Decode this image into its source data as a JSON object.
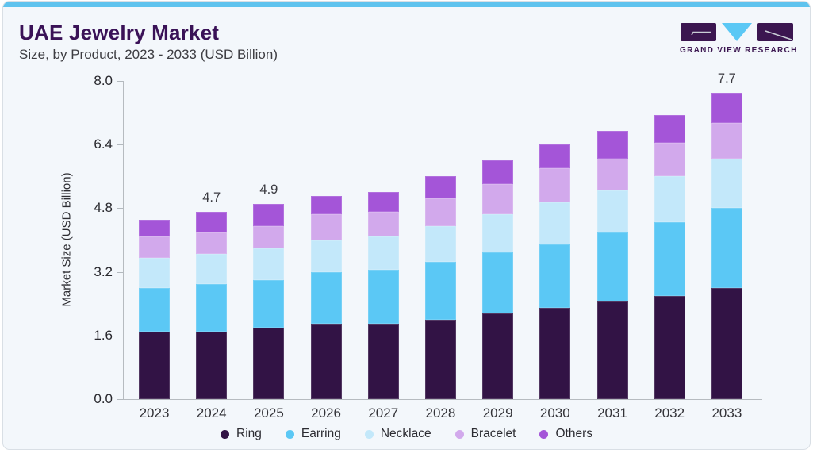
{
  "page": {
    "background": "#ffffff",
    "card_background": "#f3f7fb",
    "accent_color": "#5fc3ee",
    "border_color": "#d9dfe5",
    "axis_color": "#b6bbc0"
  },
  "header": {
    "title": "UAE Jewelry Market",
    "subtitle": "Size, by Product, 2023 - 2033 (USD Billion)"
  },
  "logo": {
    "text": "GRAND VIEW RESEARCH",
    "purple": "#3b1650",
    "blue": "#5bc8f5"
  },
  "chart_data": {
    "type": "bar",
    "variant": "stacked",
    "title": "UAE Jewelry Market",
    "subtitle": "Size, by Product, 2023 - 2033 (USD Billion)",
    "xlabel": "",
    "ylabel": "Market Size (USD Billion)",
    "ylim": [
      0,
      8
    ],
    "y_ticks": [
      "8.0",
      "6.4",
      "4.8",
      "3.2",
      "1.6",
      "0.0"
    ],
    "grid": false,
    "legend_position": "bottom",
    "categories": [
      "2023",
      "2024",
      "2025",
      "2026",
      "2027",
      "2028",
      "2029",
      "2030",
      "2031",
      "2032",
      "2033"
    ],
    "bar_labels": {
      "2024": "4.7",
      "2025": "4.9",
      "2033": "7.7"
    },
    "totals": [
      4.5,
      4.7,
      4.9,
      5.1,
      5.2,
      5.6,
      6.0,
      6.4,
      6.75,
      7.15,
      7.7
    ],
    "series": [
      {
        "name": "Ring",
        "color": "#321345",
        "values": [
          1.7,
          1.7,
          1.8,
          1.9,
          1.9,
          2.0,
          2.15,
          2.3,
          2.45,
          2.6,
          2.8
        ]
      },
      {
        "name": "Earring",
        "color": "#5bc8f5",
        "values": [
          1.1,
          1.2,
          1.2,
          1.3,
          1.35,
          1.45,
          1.55,
          1.6,
          1.75,
          1.85,
          2.0
        ]
      },
      {
        "name": "Necklace",
        "color": "#c3e8fa",
        "values": [
          0.75,
          0.75,
          0.8,
          0.8,
          0.85,
          0.9,
          0.95,
          1.05,
          1.05,
          1.15,
          1.25
        ]
      },
      {
        "name": "Bracelet",
        "color": "#d2a9ec",
        "values": [
          0.55,
          0.55,
          0.55,
          0.65,
          0.6,
          0.7,
          0.75,
          0.85,
          0.8,
          0.85,
          0.9
        ]
      },
      {
        "name": "Others",
        "color": "#a455d8",
        "values": [
          0.4,
          0.5,
          0.55,
          0.45,
          0.5,
          0.55,
          0.6,
          0.6,
          0.7,
          0.7,
          0.75
        ]
      }
    ]
  }
}
